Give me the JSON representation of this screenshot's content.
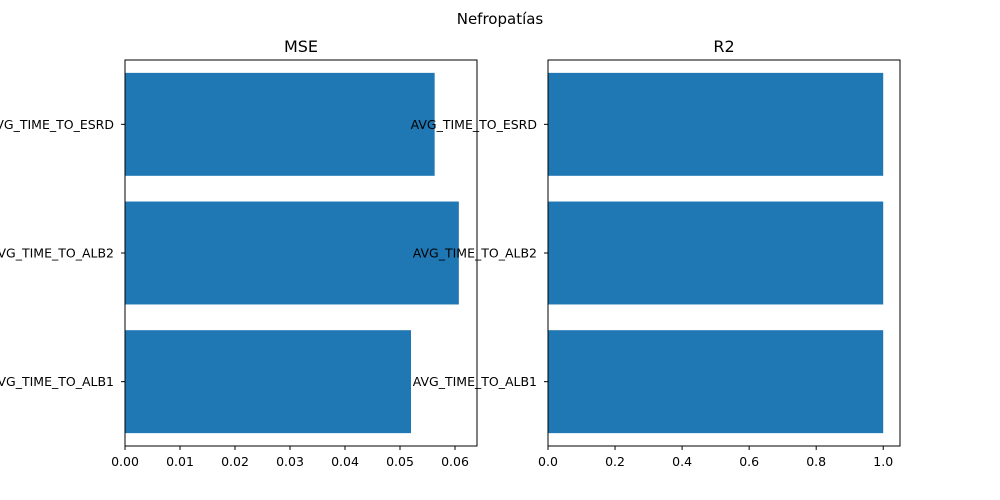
{
  "suptitle": "Nefropatías",
  "chart_data": [
    {
      "type": "bar",
      "orientation": "horizontal",
      "title": "MSE",
      "xlabel": "",
      "ylabel": "",
      "categories": [
        "AVG_TIME_TO_ALB1",
        "AVG_TIME_TO_ALB2",
        "AVG_TIME_TO_ESRD"
      ],
      "values": [
        0.052,
        0.0607,
        0.0563
      ],
      "xlim": [
        0,
        0.064
      ],
      "xticks": [
        0.0,
        0.01,
        0.02,
        0.03,
        0.04,
        0.05,
        0.06
      ],
      "xtick_labels": [
        "0.00",
        "0.01",
        "0.02",
        "0.03",
        "0.04",
        "0.05",
        "0.06"
      ],
      "bar_color": "#1f77b4",
      "grid": false
    },
    {
      "type": "bar",
      "orientation": "horizontal",
      "title": "R2",
      "xlabel": "",
      "ylabel": "",
      "categories": [
        "AVG_TIME_TO_ALB1",
        "AVG_TIME_TO_ALB2",
        "AVG_TIME_TO_ESRD"
      ],
      "values": [
        0.9999,
        0.9999,
        0.9999
      ],
      "xlim": [
        0,
        1.05
      ],
      "xticks": [
        0.0,
        0.2,
        0.4,
        0.6,
        0.8,
        1.0
      ],
      "xtick_labels": [
        "0.0",
        "0.2",
        "0.4",
        "0.6",
        "0.8",
        "1.0"
      ],
      "bar_color": "#1f77b4",
      "grid": false
    }
  ]
}
